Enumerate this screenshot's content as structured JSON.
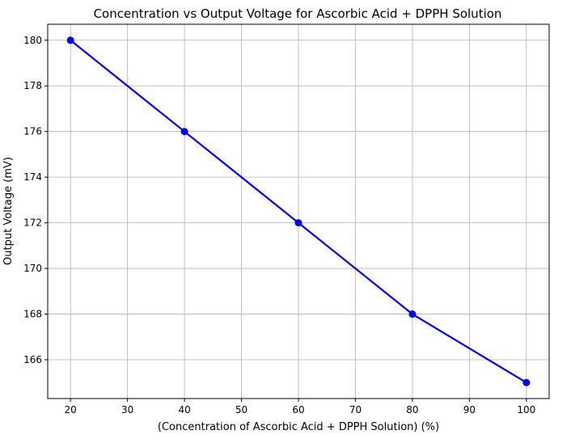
{
  "chart_data": {
    "type": "line",
    "title": "Concentration vs Output Voltage for Ascorbic Acid + DPPH Solution",
    "xlabel": "(Concentration of  Ascorbic Acid + DPPH Solution) (%)",
    "ylabel": "Output Voltage (mV)",
    "x": [
      20,
      40,
      60,
      80,
      100
    ],
    "series": [
      {
        "values": [
          180,
          176,
          172,
          168,
          165
        ],
        "color": "#0000ff",
        "marker": "circle"
      }
    ],
    "xlim": [
      16,
      104
    ],
    "ylim": [
      164.3,
      180.7
    ],
    "xticks": [
      20,
      30,
      40,
      50,
      60,
      70,
      80,
      90,
      100
    ],
    "yticks": [
      166,
      168,
      170,
      172,
      174,
      176,
      178,
      180
    ],
    "grid": true,
    "grid_color": "#b0b0b0"
  }
}
